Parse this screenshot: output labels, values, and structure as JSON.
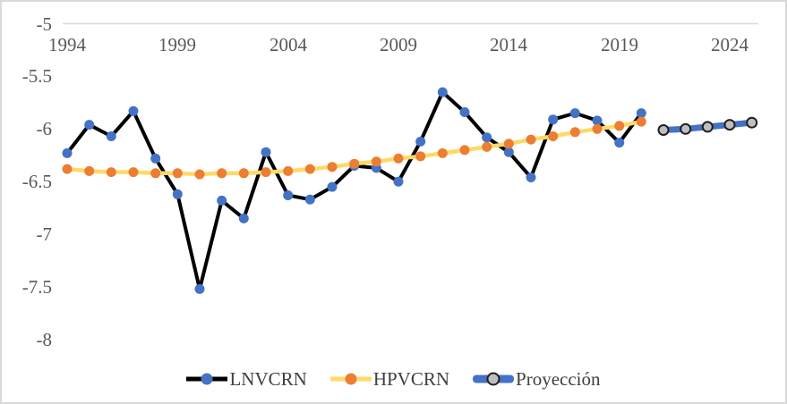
{
  "chart_data": {
    "type": "line",
    "title": "",
    "xlabel": "",
    "ylabel": "",
    "ylim": [
      -8.5,
      -5
    ],
    "grid": "single horizontal gridline at y = -5 (category axis at top)",
    "legend_position": "bottom",
    "axis_color": "#d9d9d9",
    "tick_color": "#595959",
    "y_ticks": [
      -5,
      -5.5,
      -6,
      -6.5,
      -7,
      -7.5,
      -8
    ],
    "y_tick_labels": [
      "-5",
      "-5.5",
      "-6",
      "-6.5",
      "-7",
      "-7.5",
      "-8"
    ],
    "x_tick_years": [
      1994,
      1999,
      2004,
      2009,
      2014,
      2019,
      2024
    ],
    "x_tick_labels": [
      "1994",
      "1999",
      "2004",
      "2009",
      "2014",
      "2019",
      "2024"
    ],
    "x_range_years": [
      1994,
      2025
    ],
    "series": [
      {
        "name": "LNVCRN",
        "line_color": "#000000",
        "marker_color": "#4472c4",
        "marker_stroke": "none",
        "line_width": 4,
        "marker_radius": 5.5,
        "years": [
          1994,
          1995,
          1996,
          1997,
          1998,
          1999,
          2000,
          2001,
          2002,
          2003,
          2004,
          2005,
          2006,
          2007,
          2008,
          2009,
          2010,
          2011,
          2012,
          2013,
          2014,
          2015,
          2016,
          2017,
          2018,
          2019,
          2020
        ],
        "values": [
          -6.23,
          -5.96,
          -6.07,
          -5.83,
          -6.28,
          -6.62,
          -7.52,
          -6.68,
          -6.85,
          -6.22,
          -6.63,
          -6.67,
          -6.55,
          -6.35,
          -6.37,
          -6.5,
          -6.12,
          -5.65,
          -5.84,
          -6.08,
          -6.22,
          -6.46,
          -5.91,
          -5.85,
          -5.92,
          -6.13,
          -5.85
        ]
      },
      {
        "name": "HPVCRN",
        "line_color": "#ffd966",
        "marker_color": "#ed7d31",
        "marker_stroke": "none",
        "line_width": 4.5,
        "marker_radius": 5.5,
        "years": [
          1994,
          1995,
          1996,
          1997,
          1998,
          1999,
          2000,
          2001,
          2002,
          2003,
          2004,
          2005,
          2006,
          2007,
          2008,
          2009,
          2010,
          2011,
          2012,
          2013,
          2014,
          2015,
          2016,
          2017,
          2018,
          2019,
          2020
        ],
        "values": [
          -6.38,
          -6.4,
          -6.41,
          -6.41,
          -6.42,
          -6.42,
          -6.43,
          -6.42,
          -6.42,
          -6.41,
          -6.4,
          -6.38,
          -6.36,
          -6.33,
          -6.31,
          -6.28,
          -6.26,
          -6.23,
          -6.2,
          -6.17,
          -6.14,
          -6.1,
          -6.07,
          -6.03,
          -6.0,
          -5.97,
          -5.93
        ]
      },
      {
        "name": "Proyección",
        "line_color": "#4472c4",
        "marker_color": "#bfbfbf",
        "marker_stroke": "#1f1f1f",
        "line_width": 7,
        "marker_radius": 5.5,
        "years": [
          2021,
          2022,
          2023,
          2024,
          2025
        ],
        "values": [
          -6.01,
          -6.0,
          -5.98,
          -5.96,
          -5.94
        ]
      }
    ]
  },
  "legend": {
    "items": [
      {
        "label": "LNVCRN"
      },
      {
        "label": "HPVCRN"
      },
      {
        "label": "Proyección"
      }
    ]
  }
}
